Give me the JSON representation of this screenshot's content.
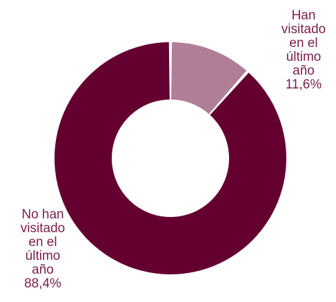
{
  "chart_data": {
    "type": "pie",
    "variant": "donut",
    "categories": [
      "Han visitado en el último año",
      "No han visitado en el último año"
    ],
    "values": [
      11.6,
      88.4
    ],
    "value_labels": [
      "11,6%",
      "88,4%"
    ],
    "colors": [
      "#b07f97",
      "#640030"
    ],
    "label_color": "#7a1f4d",
    "label_lines": [
      [
        "Han",
        "visitado",
        "en el",
        "último",
        "año",
        "11,6%"
      ],
      [
        "No han",
        "visitado",
        "en el",
        "último",
        "año",
        "88,4%"
      ]
    ],
    "legend": "none"
  }
}
